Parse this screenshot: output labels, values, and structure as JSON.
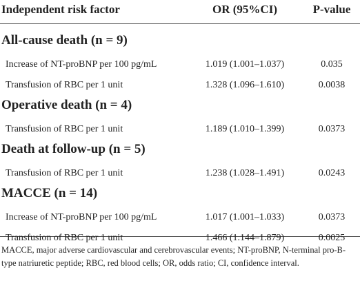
{
  "table": {
    "header": [
      "Independent risk factor",
      "OR (95%CI)",
      "P-value"
    ],
    "groups": [
      {
        "title": "All-cause death (n = 9)",
        "rows": [
          [
            "Increase of NT-proBNP per 100 pg/mL",
            "1.019 (1.001–1.037)",
            "0.035"
          ],
          [
            "Transfusion of RBC per 1 unit",
            "1.328 (1.096–1.610)",
            "0.0038"
          ]
        ]
      },
      {
        "title": "Operative death (n = 4)",
        "rows": [
          [
            "Transfusion of RBC per 1 unit",
            "1.189 (1.010–1.399)",
            "0.0373"
          ]
        ]
      },
      {
        "title": "Death at follow-up (n = 5)",
        "rows": [
          [
            "Transfusion of RBC per 1 unit",
            "1.238 (1.028–1.491)",
            "0.0243"
          ]
        ]
      },
      {
        "title": "MACCE (n = 14)",
        "rows": [
          [
            "Increase of NT-proBNP per 100 pg/mL",
            "1.017 (1.001–1.033)",
            "0.0373"
          ],
          [
            "Transfusion of RBC per 1 unit",
            "1.466 (1.144–1.879)",
            "0.0025"
          ]
        ]
      }
    ],
    "footnote": "MACCE, major adverse cardiovascular and cerebrovascular events; NT-proBNP, N-terminal pro-B-type natriuretic peptide; RBC, red blood cells; OR, odds ratio; CI, confidence interval."
  }
}
